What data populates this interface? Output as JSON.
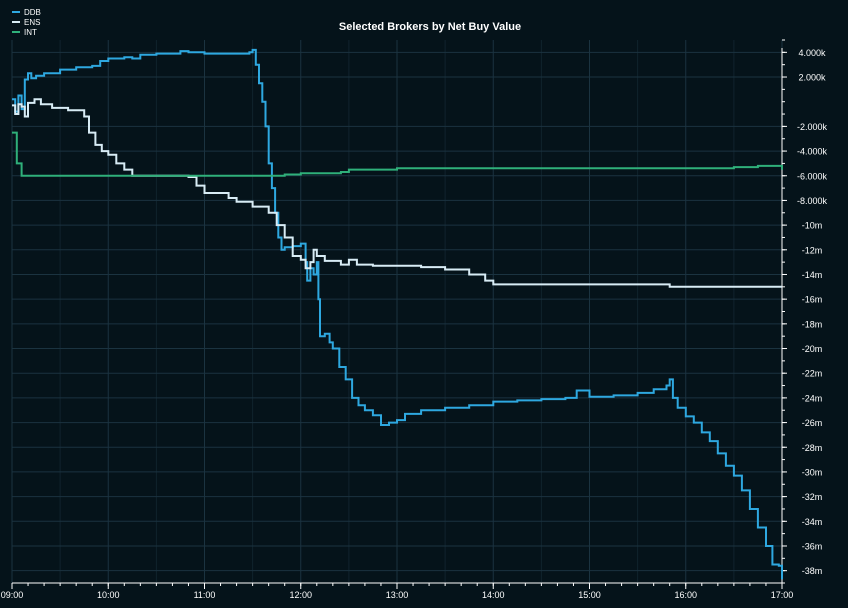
{
  "chart_data": {
    "type": "line",
    "title": "Selected Brokers by Net Buy Value",
    "xlabel": "",
    "ylabel": "",
    "legend_placement": "top-left",
    "grid": true,
    "colors": {
      "background": "#05131a",
      "grid": "#1b3340",
      "axis": "#ffffff",
      "text": "#ffffff"
    },
    "x_range": [
      "09:00",
      "17:00"
    ],
    "x_ticks": [
      "09:00",
      "10:00",
      "11:00",
      "12:00",
      "13:00",
      "14:00",
      "15:00",
      "16:00",
      "17:00"
    ],
    "y_range": [
      -39000000,
      5000000
    ],
    "y_ticks": [
      {
        "value": 4000000,
        "label": "4.000k"
      },
      {
        "value": 2000000,
        "label": "2.000k"
      },
      {
        "value": -2000000,
        "label": "-2.000k"
      },
      {
        "value": -4000000,
        "label": "-4.000k"
      },
      {
        "value": -6000000,
        "label": "-6.000k"
      },
      {
        "value": -8000000,
        "label": "-8.000k"
      },
      {
        "value": -10000000,
        "label": "-10m"
      },
      {
        "value": -12000000,
        "label": "-12m"
      },
      {
        "value": -14000000,
        "label": "-14m"
      },
      {
        "value": -16000000,
        "label": "-16m"
      },
      {
        "value": -18000000,
        "label": "-18m"
      },
      {
        "value": -20000000,
        "label": "-20m"
      },
      {
        "value": -22000000,
        "label": "-22m"
      },
      {
        "value": -24000000,
        "label": "-24m"
      },
      {
        "value": -26000000,
        "label": "-26m"
      },
      {
        "value": -28000000,
        "label": "-28m"
      },
      {
        "value": -30000000,
        "label": "-30m"
      },
      {
        "value": -32000000,
        "label": "-32m"
      },
      {
        "value": -34000000,
        "label": "-34m"
      },
      {
        "value": -36000000,
        "label": "-36m"
      },
      {
        "value": -38000000,
        "label": "-38m"
      }
    ],
    "series": [
      {
        "name": "DDB",
        "color": "#2ea8e0",
        "points": [
          [
            "09:00",
            0.2
          ],
          [
            "09:02",
            -0.8
          ],
          [
            "09:04",
            0.5
          ],
          [
            "09:06",
            -0.6
          ],
          [
            "09:08",
            1.8
          ],
          [
            "09:10",
            2.3
          ],
          [
            "09:12",
            1.9
          ],
          [
            "09:15",
            2.1
          ],
          [
            "09:20",
            2.3
          ],
          [
            "09:30",
            2.6
          ],
          [
            "09:40",
            2.8
          ],
          [
            "09:50",
            2.9
          ],
          [
            "09:55",
            3.3
          ],
          [
            "10:00",
            3.5
          ],
          [
            "10:10",
            3.6
          ],
          [
            "10:15",
            3.5
          ],
          [
            "10:20",
            3.8
          ],
          [
            "10:30",
            3.9
          ],
          [
            "10:45",
            4.1
          ],
          [
            "10:50",
            4.0
          ],
          [
            "11:00",
            3.9
          ],
          [
            "11:15",
            3.9
          ],
          [
            "11:28",
            4.0
          ],
          [
            "11:30",
            4.2
          ],
          [
            "11:32",
            3.0
          ],
          [
            "11:34",
            1.5
          ],
          [
            "11:36",
            0.0
          ],
          [
            "11:38",
            -2.0
          ],
          [
            "11:40",
            -5.0
          ],
          [
            "11:42",
            -7.0
          ],
          [
            "11:44",
            -9.0
          ],
          [
            "11:46",
            -11.0
          ],
          [
            "11:48",
            -12.0
          ],
          [
            "11:50",
            -11.8
          ],
          [
            "11:55",
            -11.7
          ],
          [
            "12:00",
            -11.5
          ],
          [
            "12:03",
            -13.0
          ],
          [
            "12:04",
            -14.5
          ],
          [
            "12:06",
            -13.5
          ],
          [
            "12:08",
            -14.0
          ],
          [
            "12:10",
            -13.0
          ],
          [
            "12:11",
            -16.0
          ],
          [
            "12:12",
            -19.0
          ],
          [
            "12:15",
            -18.8
          ],
          [
            "12:18",
            -19.5
          ],
          [
            "12:20",
            -20.0
          ],
          [
            "12:24",
            -21.5
          ],
          [
            "12:28",
            -22.5
          ],
          [
            "12:32",
            -24.0
          ],
          [
            "12:36",
            -24.6
          ],
          [
            "12:40",
            -25.0
          ],
          [
            "12:45",
            -25.4
          ],
          [
            "12:50",
            -26.2
          ],
          [
            "12:55",
            -26.0
          ],
          [
            "13:00",
            -25.8
          ],
          [
            "13:05",
            -25.3
          ],
          [
            "13:15",
            -25.0
          ],
          [
            "13:30",
            -24.8
          ],
          [
            "13:45",
            -24.6
          ],
          [
            "14:00",
            -24.3
          ],
          [
            "14:15",
            -24.2
          ],
          [
            "14:30",
            -24.1
          ],
          [
            "14:45",
            -24.0
          ],
          [
            "14:52",
            -23.4
          ],
          [
            "15:00",
            -23.9
          ],
          [
            "15:15",
            -23.8
          ],
          [
            "15:30",
            -23.6
          ],
          [
            "15:40",
            -23.3
          ],
          [
            "15:48",
            -23.0
          ],
          [
            "15:50",
            -22.5
          ],
          [
            "15:52",
            -24.0
          ],
          [
            "15:55",
            -24.8
          ],
          [
            "16:00",
            -25.5
          ],
          [
            "16:05",
            -26.0
          ],
          [
            "16:10",
            -26.8
          ],
          [
            "16:15",
            -27.5
          ],
          [
            "16:20",
            -28.5
          ],
          [
            "16:25",
            -29.5
          ],
          [
            "16:30",
            -30.3
          ],
          [
            "16:35",
            -31.5
          ],
          [
            "16:40",
            -33.0
          ],
          [
            "16:45",
            -34.5
          ],
          [
            "16:50",
            -36.0
          ],
          [
            "16:54",
            -37.5
          ],
          [
            "16:58",
            -37.6
          ],
          [
            "17:00",
            -38.7
          ]
        ]
      },
      {
        "name": "ENS",
        "color": "#d8ecf5",
        "points": [
          [
            "09:00",
            -0.3
          ],
          [
            "09:02",
            -1.0
          ],
          [
            "09:04",
            -0.2
          ],
          [
            "09:06",
            -0.4
          ],
          [
            "09:08",
            -1.2
          ],
          [
            "09:10",
            -0.1
          ],
          [
            "09:14",
            0.2
          ],
          [
            "09:18",
            -0.2
          ],
          [
            "09:25",
            -0.5
          ],
          [
            "09:35",
            -0.7
          ],
          [
            "09:45",
            -1.2
          ],
          [
            "09:48",
            -2.5
          ],
          [
            "09:52",
            -3.5
          ],
          [
            "09:56",
            -4.0
          ],
          [
            "10:00",
            -4.3
          ],
          [
            "10:05",
            -5.0
          ],
          [
            "10:10",
            -5.5
          ],
          [
            "10:15",
            -6.0
          ],
          [
            "10:30",
            -6.0
          ],
          [
            "10:50",
            -6.1
          ],
          [
            "10:55",
            -6.8
          ],
          [
            "11:00",
            -7.4
          ],
          [
            "11:15",
            -7.8
          ],
          [
            "11:20",
            -8.1
          ],
          [
            "11:30",
            -8.5
          ],
          [
            "11:40",
            -9.0
          ],
          [
            "11:45",
            -10.0
          ],
          [
            "11:50",
            -11.0
          ],
          [
            "11:55",
            -12.5
          ],
          [
            "12:00",
            -12.8
          ],
          [
            "12:03",
            -13.5
          ],
          [
            "12:06",
            -13.0
          ],
          [
            "12:08",
            -12.0
          ],
          [
            "12:10",
            -12.5
          ],
          [
            "12:15",
            -12.9
          ],
          [
            "12:25",
            -13.2
          ],
          [
            "12:30",
            -12.8
          ],
          [
            "12:35",
            -13.2
          ],
          [
            "12:45",
            -13.3
          ],
          [
            "13:00",
            -13.3
          ],
          [
            "13:15",
            -13.4
          ],
          [
            "13:30",
            -13.6
          ],
          [
            "13:45",
            -14.0
          ],
          [
            "13:55",
            -14.5
          ],
          [
            "14:00",
            -14.8
          ],
          [
            "14:30",
            -14.8
          ],
          [
            "15:00",
            -14.8
          ],
          [
            "15:30",
            -14.8
          ],
          [
            "15:45",
            -14.8
          ],
          [
            "15:50",
            -15.0
          ],
          [
            "16:00",
            -15.0
          ],
          [
            "16:30",
            -15.0
          ],
          [
            "16:45",
            -15.0
          ],
          [
            "17:00",
            -15.0
          ]
        ]
      },
      {
        "name": "INT",
        "color": "#2fb07a",
        "points": [
          [
            "09:00",
            -2.5
          ],
          [
            "09:03",
            -5.0
          ],
          [
            "09:06",
            -6.0
          ],
          [
            "09:30",
            -6.0
          ],
          [
            "10:00",
            -6.0
          ],
          [
            "10:30",
            -6.0
          ],
          [
            "11:00",
            -6.0
          ],
          [
            "11:30",
            -6.0
          ],
          [
            "11:45",
            -6.0
          ],
          [
            "11:50",
            -5.9
          ],
          [
            "12:00",
            -5.8
          ],
          [
            "12:15",
            -5.8
          ],
          [
            "12:25",
            -5.7
          ],
          [
            "12:30",
            -5.5
          ],
          [
            "13:00",
            -5.4
          ],
          [
            "13:30",
            -5.4
          ],
          [
            "14:00",
            -5.4
          ],
          [
            "14:30",
            -5.4
          ],
          [
            "15:00",
            -5.4
          ],
          [
            "15:30",
            -5.4
          ],
          [
            "16:00",
            -5.4
          ],
          [
            "16:30",
            -5.3
          ],
          [
            "16:45",
            -5.2
          ],
          [
            "16:55",
            -5.2
          ],
          [
            "17:00",
            -5.5
          ]
        ]
      }
    ]
  }
}
